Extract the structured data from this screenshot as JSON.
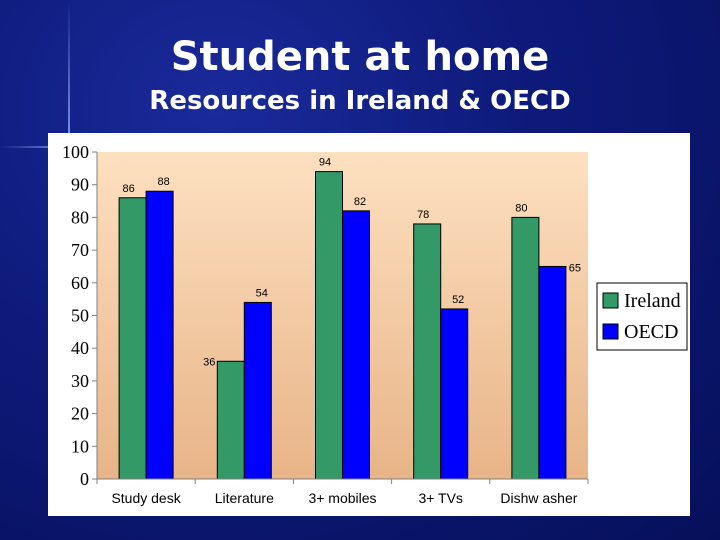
{
  "slide": {
    "title": "Student at home",
    "subtitle": "Resources in Ireland & OECD"
  },
  "chart_data": {
    "type": "bar",
    "categories": [
      "Study desk",
      "Literature",
      "3+ mobiles",
      "3+ TVs",
      "Dishw asher"
    ],
    "series": [
      {
        "name": "Ireland",
        "color": "#339966",
        "values": [
          86,
          36,
          94,
          78,
          80
        ]
      },
      {
        "name": "OECD",
        "color": "#0000ff",
        "values": [
          88,
          54,
          82,
          52,
          65
        ]
      }
    ],
    "ylim": [
      0,
      100
    ],
    "yticks": [
      0,
      10,
      20,
      30,
      40,
      50,
      60,
      70,
      80,
      90,
      100
    ],
    "legend": "right",
    "grid": false,
    "plot_background": [
      "#fde0c0",
      "#e8b488"
    ]
  }
}
